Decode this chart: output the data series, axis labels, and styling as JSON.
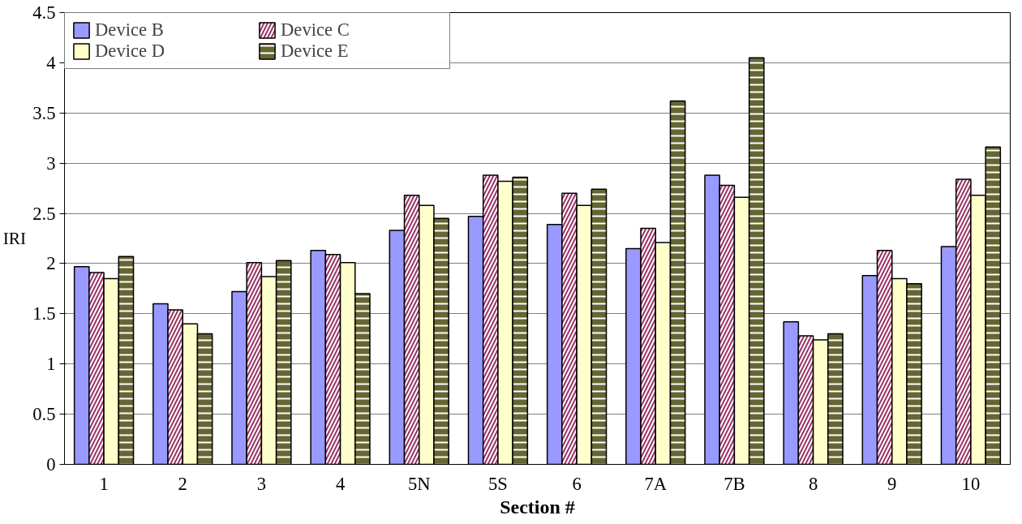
{
  "chart_data": {
    "type": "bar",
    "xlabel": "Section #",
    "ylabel": "IRI",
    "categories": [
      "1",
      "2",
      "3",
      "4",
      "5N",
      "5S",
      "6",
      "7A",
      "7B",
      "8",
      "9",
      "10"
    ],
    "series": [
      {
        "name": "Device B",
        "color": "#9999ff",
        "values": [
          1.97,
          1.6,
          1.72,
          2.13,
          2.33,
          2.47,
          2.39,
          2.15,
          2.88,
          1.42,
          1.88,
          2.17
        ]
      },
      {
        "name": "Device C",
        "color": "#993366",
        "values": [
          1.91,
          1.54,
          2.01,
          2.09,
          2.68,
          2.88,
          2.7,
          2.35,
          2.78,
          1.28,
          2.13,
          2.84
        ]
      },
      {
        "name": "Device D",
        "color": "#ffffcc",
        "values": [
          1.85,
          1.4,
          1.87,
          2.01,
          2.58,
          2.82,
          2.58,
          2.21,
          2.66,
          1.24,
          1.85,
          2.68
        ]
      },
      {
        "name": "Device E",
        "color": "#666633",
        "values": [
          2.07,
          1.3,
          2.03,
          1.7,
          2.45,
          2.86,
          2.74,
          3.62,
          4.05,
          1.3,
          1.8,
          3.16
        ]
      }
    ],
    "ylim": [
      0,
      4.5
    ],
    "yticks": [
      0,
      0.5,
      1,
      1.5,
      2,
      2.5,
      3,
      3.5,
      4,
      4.5
    ],
    "grid": "y",
    "legend": "top left"
  }
}
